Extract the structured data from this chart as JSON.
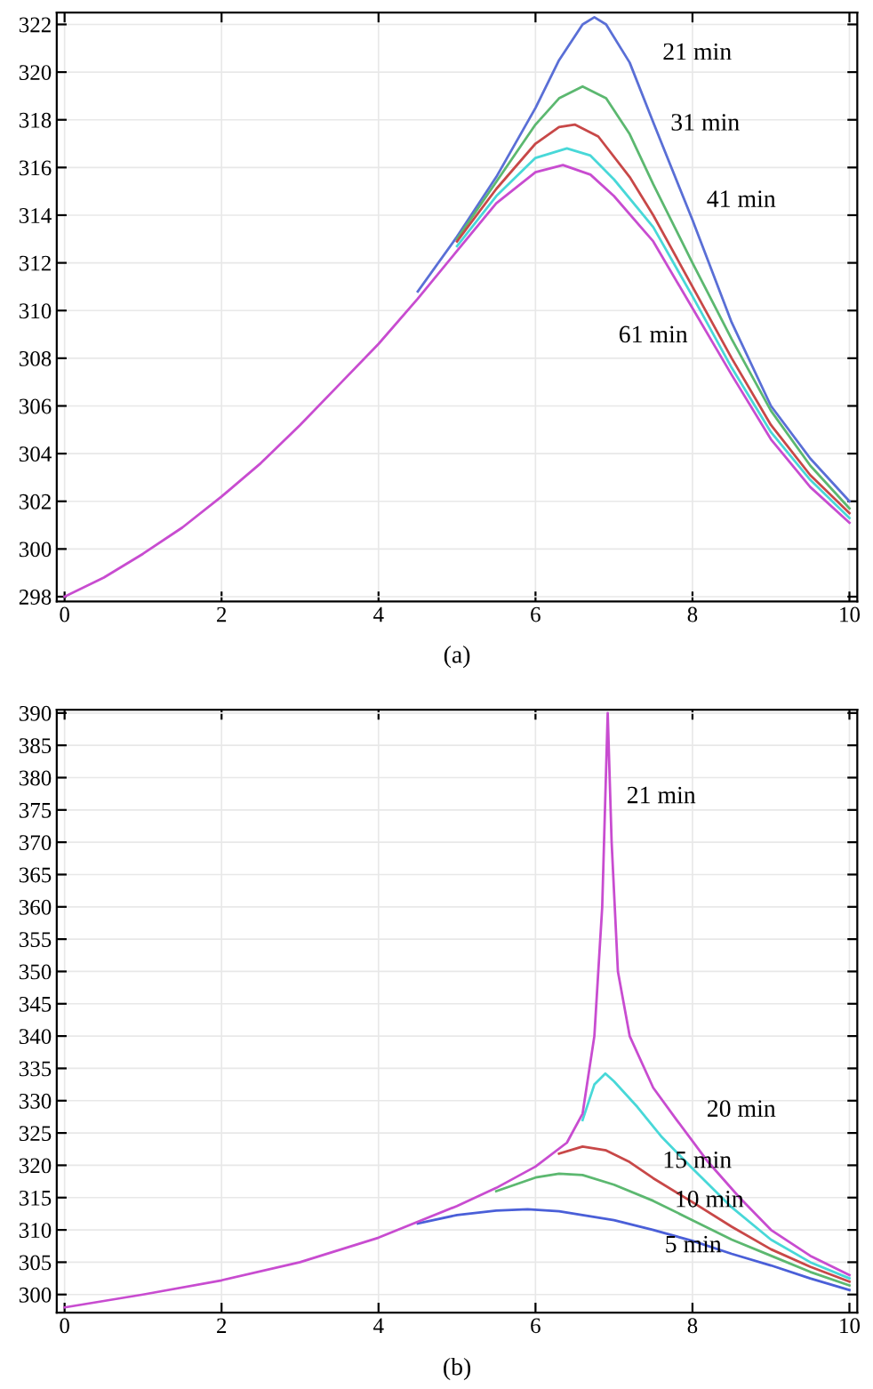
{
  "chart_data": [
    {
      "type": "line",
      "title": "(a)",
      "xlim": [
        -0.1,
        10.1
      ],
      "ylim": [
        297.8,
        322.5
      ],
      "xticks": [
        0,
        2,
        4,
        6,
        8,
        10
      ],
      "yticks": [
        298,
        300,
        302,
        304,
        306,
        308,
        310,
        312,
        314,
        316,
        318,
        320,
        322
      ],
      "grid": true,
      "line_style": "solid",
      "marker": "none",
      "series": [
        {
          "color": "#5a6fd6",
          "x": [
            4.5,
            5,
            5.5,
            6,
            6.3,
            6.6,
            6.75,
            6.9,
            7.2,
            7.5,
            8,
            8.5,
            9,
            9.5,
            10
          ],
          "values": [
            310.8,
            313.1,
            315.6,
            318.5,
            320.5,
            322.0,
            322.3,
            322.0,
            320.4,
            317.9,
            313.8,
            309.5,
            306.0,
            303.8,
            302.0
          ]
        },
        {
          "color": "#5cb870",
          "x": [
            5,
            5.5,
            6,
            6.3,
            6.6,
            6.9,
            7.2,
            7.5,
            8,
            8.5,
            9,
            9.5,
            10
          ],
          "values": [
            313.0,
            315.4,
            317.8,
            318.9,
            319.4,
            318.9,
            317.4,
            315.3,
            312.0,
            308.8,
            305.8,
            303.5,
            301.7
          ]
        },
        {
          "color": "#c84848",
          "x": [
            5,
            5.5,
            6,
            6.3,
            6.5,
            6.8,
            7.2,
            7.5,
            8,
            8.5,
            9,
            9.5,
            10
          ],
          "values": [
            312.9,
            315.1,
            317.0,
            317.7,
            317.8,
            317.3,
            315.6,
            314.0,
            311.0,
            308.0,
            305.2,
            303.1,
            301.5
          ]
        },
        {
          "color": "#48d8d8",
          "x": [
            5,
            5.5,
            6,
            6.4,
            6.7,
            7,
            7.5,
            8,
            8.5,
            9,
            9.5,
            10
          ],
          "values": [
            312.7,
            314.8,
            316.4,
            316.8,
            316.5,
            315.5,
            313.5,
            310.6,
            307.6,
            304.9,
            302.9,
            301.3
          ]
        },
        {
          "color": "#c84cd0",
          "x": [
            0,
            0.5,
            1,
            1.5,
            2,
            2.5,
            3,
            3.5,
            4,
            4.5,
            5,
            5.5,
            6,
            6.35,
            6.7,
            7,
            7.5,
            8,
            8.5,
            9,
            9.5,
            10
          ],
          "values": [
            298.0,
            298.8,
            299.8,
            300.9,
            302.2,
            303.6,
            305.2,
            306.9,
            308.6,
            310.5,
            312.5,
            314.5,
            315.8,
            316.1,
            315.7,
            314.8,
            312.9,
            310.1,
            307.3,
            304.6,
            302.6,
            301.1
          ]
        }
      ],
      "annotations": [
        "21 min",
        "31 min",
        "41 min",
        "61 min"
      ]
    },
    {
      "type": "line",
      "title": "(b)",
      "xlim": [
        -0.1,
        10.1
      ],
      "ylim": [
        297.2,
        390.5
      ],
      "xticks": [
        0,
        2,
        4,
        6,
        8,
        10
      ],
      "yticks": [
        300,
        305,
        310,
        315,
        320,
        325,
        330,
        335,
        340,
        345,
        350,
        355,
        360,
        365,
        370,
        375,
        380,
        385,
        390
      ],
      "grid": true,
      "line_style": "solid",
      "marker": "none",
      "series": [
        {
          "color": "#4a5fd8",
          "x": [
            4.5,
            5,
            5.5,
            5.9,
            6.3,
            7,
            7.5,
            8,
            8.5,
            9,
            9.5,
            10
          ],
          "values": [
            311.0,
            312.3,
            313.0,
            313.2,
            312.9,
            311.5,
            310.0,
            308.3,
            306.3,
            304.5,
            302.5,
            300.7
          ]
        },
        {
          "color": "#5cb870",
          "x": [
            5.5,
            6,
            6.3,
            6.6,
            7,
            7.5,
            8,
            8.5,
            9,
            9.5,
            10
          ],
          "values": [
            316.0,
            318.1,
            318.7,
            318.5,
            317.0,
            314.5,
            311.5,
            308.5,
            306.0,
            303.5,
            301.4
          ]
        },
        {
          "color": "#c84848",
          "x": [
            6.3,
            6.6,
            6.9,
            7.2,
            7.5,
            8,
            8.5,
            9,
            9.5,
            10
          ],
          "values": [
            321.8,
            322.9,
            322.3,
            320.5,
            318.0,
            314.3,
            310.5,
            307.0,
            304.3,
            302.0
          ]
        },
        {
          "color": "#48d8d8",
          "x": [
            6.6,
            6.75,
            6.89,
            7,
            7.3,
            7.6,
            8,
            8.5,
            9,
            9.5,
            10
          ],
          "values": [
            327.0,
            332.5,
            334.2,
            333.0,
            329.0,
            324.5,
            319.5,
            313.5,
            308.5,
            305.0,
            302.5
          ]
        },
        {
          "color": "#c84cd0",
          "x": [
            0,
            1,
            2,
            3,
            4,
            5,
            5.5,
            6,
            6.4,
            6.6,
            6.75,
            6.85,
            6.92,
            6.97,
            7.05,
            7.2,
            7.5,
            7.8,
            8.2,
            8.6,
            9,
            9.5,
            10
          ],
          "values": [
            298.0,
            300.0,
            302.2,
            305.0,
            308.8,
            313.7,
            316.5,
            319.8,
            323.5,
            328.0,
            340.0,
            360.0,
            390.0,
            370.0,
            350.0,
            340.0,
            332.0,
            327.0,
            320.5,
            315.0,
            310.0,
            306.0,
            303.0
          ]
        }
      ],
      "annotations": [
        "21 min",
        "20 min",
        "15 min",
        "10 min",
        "5 min"
      ]
    }
  ]
}
